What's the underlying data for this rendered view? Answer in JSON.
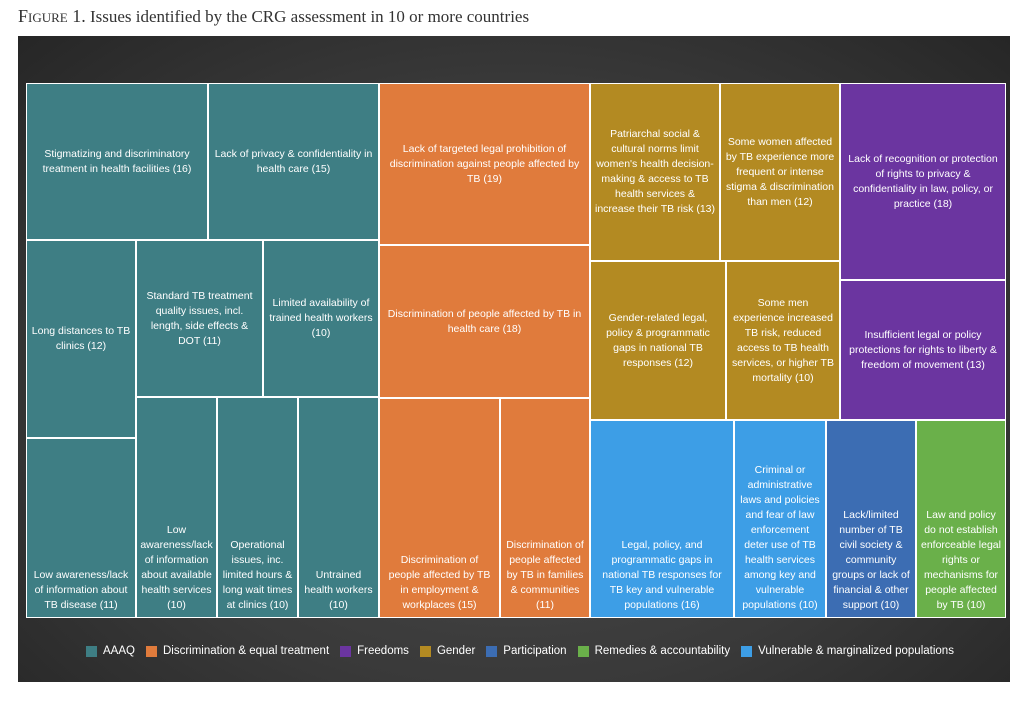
{
  "caption": {
    "figure_label": "Figure 1.",
    "text": " Issues identified by the CRG assessment in 10 or more countries"
  },
  "colors": {
    "AAAQ": "#3e7e84",
    "Discrimination & equal treatment": "#e07b3c",
    "Freedoms": "#6b35a0",
    "Gender": "#b38a22",
    "Participation": "#3c6db3",
    "Remedies & accountability": "#6ab04a",
    "Vulnerable & marginalized populations": "#3d9ee6"
  },
  "chart_data": {
    "type": "treemap",
    "title": "",
    "legend": {
      "placement": "bottom",
      "entries": [
        "AAAQ",
        "Discrimination & equal treatment",
        "Freedoms",
        "Gender",
        "Participation",
        "Remedies & accountability",
        "Vulnerable & marginalized populations"
      ]
    },
    "items": [
      {
        "label": "Stigmatizing and discriminatory treatment in health facilities (16)",
        "category": "AAAQ",
        "value": 16
      },
      {
        "label": "Lack of privacy & confidentiality in health care (15)",
        "category": "AAAQ",
        "value": 15
      },
      {
        "label": "Long distances to TB clinics (12)",
        "category": "AAAQ",
        "value": 12
      },
      {
        "label": "Low awareness/lack of information about TB disease (11)",
        "category": "AAAQ",
        "value": 11
      },
      {
        "label": "Standard TB treatment quality issues, incl. length, side effects & DOT (11)",
        "category": "AAAQ",
        "value": 11
      },
      {
        "label": "Limited availability of trained health workers (10)",
        "category": "AAAQ",
        "value": 10
      },
      {
        "label": "Low awareness/lack of information about available health services (10)",
        "category": "AAAQ",
        "value": 10
      },
      {
        "label": "Operational issues, inc. limited hours & long wait times at clinics (10)",
        "category": "AAAQ",
        "value": 10
      },
      {
        "label": "Untrained health workers (10)",
        "category": "AAAQ",
        "value": 10
      },
      {
        "label": "Lack of targeted legal prohibition of discrimination against people affected by TB (19)",
        "category": "Discrimination & equal treatment",
        "value": 19
      },
      {
        "label": "Discrimination of people affected by TB in health care (18)",
        "category": "Discrimination & equal treatment",
        "value": 18
      },
      {
        "label": "Discrimination of people affected by TB in employment & workplaces (15)",
        "category": "Discrimination & equal treatment",
        "value": 15
      },
      {
        "label": "Discrimination of people affected by TB in families & communities (11)",
        "category": "Discrimination & equal treatment",
        "value": 11
      },
      {
        "label": "Patriarchal social & cultural norms limit women's health decision-making & access to TB health services & increase their TB risk (13)",
        "category": "Gender",
        "value": 13
      },
      {
        "label": "Some women affected by TB experience more frequent or intense stigma & discrimination than men (12)",
        "category": "Gender",
        "value": 12
      },
      {
        "label": "Gender-related legal, policy & programmatic gaps in national TB responses (12)",
        "category": "Gender",
        "value": 12
      },
      {
        "label": "Some men experience increased TB risk, reduced access to TB health services, or higher TB mortality (10)",
        "category": "Gender",
        "value": 10
      },
      {
        "label": "Lack of recognition or protection of rights to privacy & confidentiality in law, policy, or practice (18)",
        "category": "Freedoms",
        "value": 18
      },
      {
        "label": "Insufficient legal or policy protections for rights to liberty & freedom of movement (13)",
        "category": "Freedoms",
        "value": 13
      },
      {
        "label": "Legal, policy, and programmatic gaps in national TB responses for TB key and vulnerable populations (16)",
        "category": "Vulnerable & marginalized populations",
        "value": 16
      },
      {
        "label": "Criminal or administrative laws and policies and fear of law enforcement deter use of TB health services among key and vulnerable populations (10)",
        "category": "Vulnerable & marginalized populations",
        "value": 10
      },
      {
        "label": "Lack/limited number of TB civil society & community groups or lack of financial & other support (10)",
        "category": "Participation",
        "value": 10
      },
      {
        "label": "Law and policy do not establish enforceable legal rights or mechanisms for people affected by TB (10)",
        "category": "Remedies & accountability",
        "value": 10
      }
    ]
  }
}
